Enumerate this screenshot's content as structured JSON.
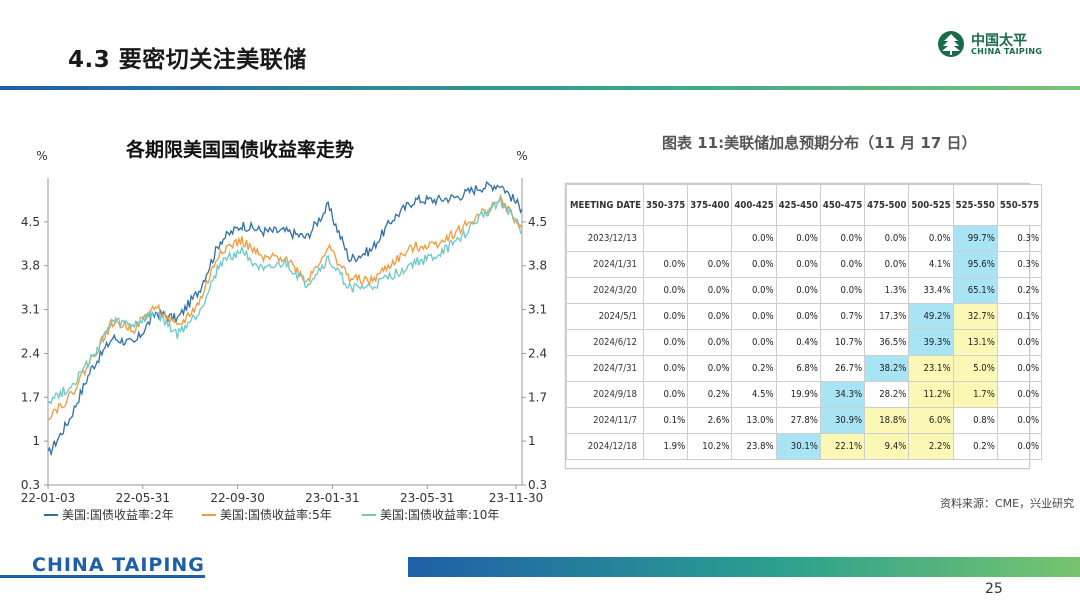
{
  "slide": {
    "title": "4.3 要密切关注美联储",
    "page_number": "25",
    "brand": "CHINA TAIPING",
    "logo_cn": "中国太平",
    "logo_en": "CHINA TAIPING"
  },
  "colors": {
    "series_2y": "#2e6fa8",
    "series_5y": "#f39a3c",
    "series_10y": "#6cc7c9",
    "hl_blue": "#a9e4f4",
    "hl_yellow": "#fbf7b5"
  },
  "chart_data": {
    "type": "line",
    "title": "各期限美国国债收益率走势",
    "ylabel_left": "%",
    "ylabel_right": "%",
    "ylim": [
      0.3,
      5.2
    ],
    "yticks": [
      "0.3",
      "1",
      "1.7",
      "2.4",
      "3.1",
      "3.8",
      "4.5"
    ],
    "xticks": [
      "22-01-03",
      "22-05-31",
      "22-09-30",
      "23-01-31",
      "23-05-31",
      "23-11-30"
    ],
    "x": [
      "22-01",
      "22-02",
      "22-03",
      "22-04",
      "22-05",
      "22-06",
      "22-07",
      "22-08",
      "22-09",
      "22-10",
      "22-11",
      "22-12",
      "23-01",
      "23-02",
      "23-03",
      "23-04",
      "23-05",
      "23-06",
      "23-07",
      "23-08",
      "23-09",
      "23-10",
      "23-11"
    ],
    "series": [
      {
        "name": "美国:国债收益率:2年",
        "values": [
          0.78,
          1.35,
          2.15,
          2.65,
          2.55,
          3.05,
          2.95,
          3.4,
          4.2,
          4.45,
          4.35,
          4.35,
          4.25,
          4.75,
          3.9,
          4.05,
          4.55,
          4.85,
          4.85,
          4.9,
          5.05,
          5.1,
          4.7
        ]
      },
      {
        "name": "美国:国债收益率:5年",
        "values": [
          1.4,
          1.7,
          2.3,
          2.9,
          2.8,
          3.15,
          2.8,
          3.2,
          4.05,
          4.2,
          3.9,
          3.95,
          3.55,
          4.1,
          3.6,
          3.55,
          3.85,
          4.1,
          4.15,
          4.35,
          4.6,
          4.85,
          4.4
        ]
      },
      {
        "name": "美国:国债收益率:10年",
        "values": [
          1.65,
          1.85,
          2.3,
          2.9,
          2.85,
          3.05,
          2.7,
          3.05,
          3.85,
          4.05,
          3.7,
          3.85,
          3.5,
          3.9,
          3.45,
          3.45,
          3.65,
          3.85,
          3.95,
          4.2,
          4.55,
          4.85,
          4.35
        ]
      }
    ]
  },
  "table": {
    "caption": "图表 11:美联储加息预期分布（11 月 17 日）",
    "headers": [
      "MEETING DATE",
      "350-375",
      "375-400",
      "400-425",
      "425-450",
      "450-475",
      "475-500",
      "500-525",
      "525-550",
      "550-575"
    ],
    "rows": [
      [
        "2023/12/13",
        "",
        "",
        "0.0%",
        "0.0%",
        "0.0%",
        "0.0%",
        "0.0%",
        "99.7%",
        "0.3%"
      ],
      [
        "2024/1/31",
        "0.0%",
        "0.0%",
        "0.0%",
        "0.0%",
        "0.0%",
        "0.0%",
        "4.1%",
        "95.6%",
        "0.3%"
      ],
      [
        "2024/3/20",
        "0.0%",
        "0.0%",
        "0.0%",
        "0.0%",
        "0.0%",
        "1.3%",
        "33.4%",
        "65.1%",
        "0.2%"
      ],
      [
        "2024/5/1",
        "0.0%",
        "0.0%",
        "0.0%",
        "0.0%",
        "0.7%",
        "17.3%",
        "49.2%",
        "32.7%",
        "0.1%"
      ],
      [
        "2024/6/12",
        "0.0%",
        "0.0%",
        "0.0%",
        "0.4%",
        "10.7%",
        "36.5%",
        "39.3%",
        "13.1%",
        "0.0%"
      ],
      [
        "2024/7/31",
        "0.0%",
        "0.0%",
        "0.2%",
        "6.8%",
        "26.7%",
        "38.2%",
        "23.1%",
        "5.0%",
        "0.0%"
      ],
      [
        "2024/9/18",
        "0.0%",
        "0.2%",
        "4.5%",
        "19.9%",
        "34.3%",
        "28.2%",
        "11.2%",
        "1.7%",
        "0.0%"
      ],
      [
        "2024/11/7",
        "0.1%",
        "2.6%",
        "13.0%",
        "27.8%",
        "30.9%",
        "18.8%",
        "6.0%",
        "0.8%",
        "0.0%"
      ],
      [
        "2024/12/18",
        "1.9%",
        "10.2%",
        "23.8%",
        "30.1%",
        "22.1%",
        "9.4%",
        "2.2%",
        "0.2%",
        "0.0%"
      ]
    ],
    "highlights": {
      "blue": [
        [
          0,
          8
        ],
        [
          1,
          8
        ],
        [
          2,
          8
        ],
        [
          3,
          7
        ],
        [
          4,
          7
        ],
        [
          5,
          6
        ],
        [
          6,
          5
        ],
        [
          7,
          5
        ],
        [
          8,
          4
        ]
      ],
      "yellow": [
        [
          3,
          8
        ],
        [
          4,
          8
        ],
        [
          5,
          7
        ],
        [
          5,
          8
        ],
        [
          6,
          7
        ],
        [
          6,
          8
        ],
        [
          7,
          6
        ],
        [
          7,
          7
        ],
        [
          8,
          5
        ],
        [
          8,
          6
        ],
        [
          8,
          7
        ]
      ]
    },
    "source": "资料来源：CME，兴业研究"
  }
}
